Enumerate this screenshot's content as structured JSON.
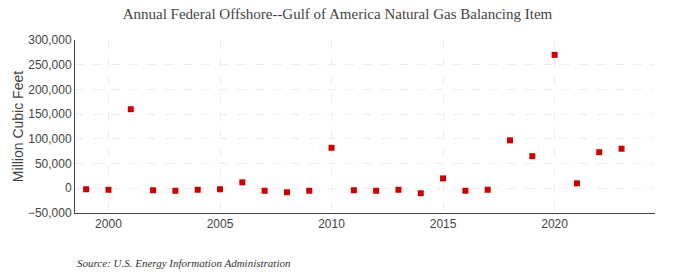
{
  "chart_data": {
    "type": "scatter",
    "title": "Annual Federal Offshore--Gulf of America Natural Gas Balancing Item",
    "ylabel": "Million Cubic Feet",
    "annotations": [
      "Source: U.S. Energy Information Administration"
    ],
    "x": [
      1999,
      2000,
      2001,
      2002,
      2003,
      2004,
      2005,
      2006,
      2007,
      2008,
      2009,
      2010,
      2011,
      2012,
      2013,
      2014,
      2015,
      2016,
      2017,
      2018,
      2019,
      2020,
      2021,
      2022,
      2023
    ],
    "values": [
      -2000,
      -3000,
      160000,
      -4000,
      -5000,
      -3000,
      -2000,
      12000,
      -5000,
      -8000,
      -5000,
      82000,
      -4000,
      -5000,
      -3000,
      -10000,
      20000,
      -5000,
      -3000,
      97000,
      65000,
      270000,
      10000,
      73000,
      80000
    ],
    "color": "#cc0000",
    "marker": "square",
    "xlim": [
      1998.5,
      2024.5
    ],
    "xticks": [
      2000,
      2005,
      2010,
      2015,
      2020
    ],
    "ylim": [
      -50000,
      300000
    ],
    "yticks": [
      {
        "value": -50000,
        "label": "−50,000"
      },
      0,
      {
        "value": 50000,
        "label": "50,000"
      },
      {
        "value": 100000,
        "label": "100,000"
      },
      {
        "value": 150000,
        "label": "150,000"
      },
      {
        "value": 200000,
        "label": "200,000"
      },
      {
        "value": 250000,
        "label": "250,000"
      },
      {
        "value": 300000,
        "label": "300,000"
      }
    ],
    "grid": true
  }
}
